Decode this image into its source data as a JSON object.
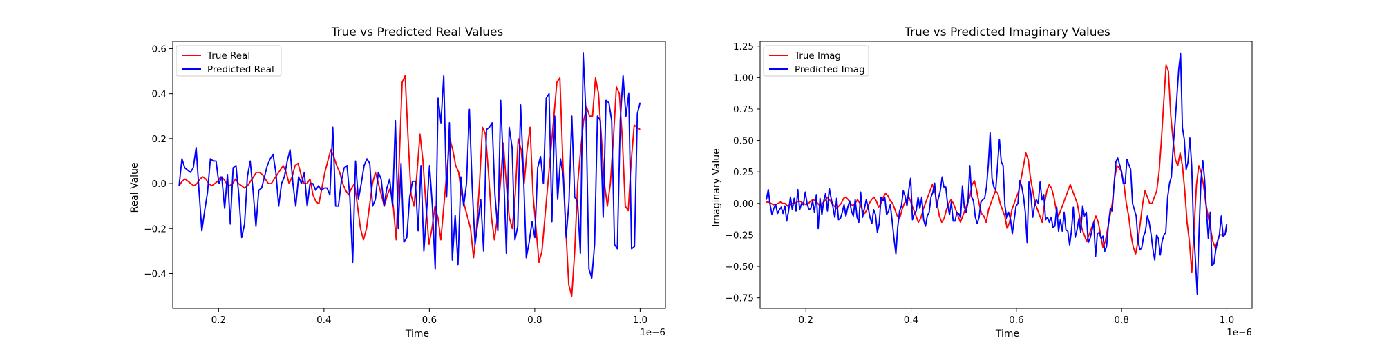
{
  "chart_data": [
    {
      "type": "line",
      "title": "True vs Predicted Real Values",
      "xlabel": "Time",
      "ylabel": "Real Value",
      "x_offset_label": "1e−6",
      "xlim": [
        0.113,
        1.048
      ],
      "ylim": [
        -0.555,
        0.632
      ],
      "xticks": [
        0.2,
        0.4,
        0.6,
        0.8,
        1.0
      ],
      "xtick_labels": [
        "0.2",
        "0.4",
        "0.6",
        "0.8",
        "1.0"
      ],
      "yticks": [
        -0.4,
        -0.2,
        0.0,
        0.2,
        0.4,
        0.6
      ],
      "ytick_labels": [
        "−0.4",
        "−0.2",
        "0.0",
        "0.2",
        "0.4",
        "0.6"
      ],
      "grid": false,
      "legend_position": "upper-left",
      "x_start": 0.125,
      "x_end": 1.0,
      "series": [
        {
          "name": "True Real",
          "color": "#ff0000",
          "values": [
            -0.01,
            0.01,
            0.02,
            0.01,
            0.0,
            -0.01,
            0.0,
            0.02,
            0.03,
            0.02,
            0.0,
            -0.01,
            0.0,
            0.01,
            0.03,
            0.02,
            0.0,
            -0.01,
            0.0,
            0.02,
            0.0,
            -0.01,
            -0.02,
            -0.01,
            0.01,
            0.03,
            0.05,
            0.05,
            0.04,
            0.02,
            0.0,
            0.0,
            0.02,
            0.04,
            0.06,
            0.08,
            0.05,
            0.0,
            0.03,
            0.08,
            0.09,
            0.04,
            0.0,
            0.0,
            0.02,
            -0.05,
            -0.08,
            -0.09,
            -0.02,
            0.05,
            0.1,
            0.15,
            0.12,
            0.08,
            0.05,
            0.0,
            -0.03,
            -0.05,
            -0.02,
            0.0,
            -0.1,
            -0.2,
            -0.25,
            -0.2,
            -0.1,
            0.0,
            0.05,
            0.0,
            -0.05,
            -0.1,
            -0.05,
            -0.02,
            -0.1,
            -0.25,
            0.1,
            0.45,
            0.48,
            0.2,
            -0.05,
            -0.1,
            0.05,
            0.22,
            0.1,
            -0.1,
            -0.27,
            -0.2,
            -0.1,
            -0.15,
            -0.25,
            -0.1,
            0.05,
            0.2,
            0.15,
            0.08,
            0.05,
            -0.05,
            -0.1,
            -0.15,
            -0.2,
            -0.33,
            -0.2,
            0.0,
            0.25,
            0.22,
            0.05,
            -0.15,
            -0.25,
            -0.15,
            0.0,
            0.18,
            0.0,
            -0.15,
            -0.2,
            -0.05,
            0.2,
            0.15,
            0.0,
            0.15,
            0.25,
            -0.05,
            -0.2,
            -0.35,
            -0.3,
            -0.15,
            0.0,
            0.15,
            0.3,
            0.45,
            0.47,
            0.1,
            -0.2,
            -0.45,
            -0.5,
            -0.3,
            0.0,
            0.15,
            0.28,
            0.34,
            0.3,
            0.3,
            0.47,
            0.4,
            0.2,
            0.0,
            -0.1,
            0.0,
            0.2,
            0.43,
            0.4,
            0.2,
            -0.1,
            -0.12,
            0.1,
            0.26,
            0.25,
            0.24
          ]
        },
        {
          "name": "Predicted Real",
          "color": "#0000ff",
          "values": [
            -0.01,
            0.11,
            0.07,
            0.06,
            0.05,
            0.07,
            0.16,
            -0.03,
            -0.21,
            -0.12,
            -0.04,
            0.11,
            0.1,
            0.1,
            0.0,
            0.03,
            -0.11,
            0.04,
            -0.18,
            0.07,
            0.08,
            -0.05,
            -0.24,
            -0.18,
            0.03,
            0.1,
            -0.03,
            -0.19,
            -0.03,
            -0.02,
            0.03,
            0.08,
            0.11,
            0.13,
            0.05,
            -0.1,
            0.0,
            0.03,
            0.1,
            0.15,
            0.0,
            -0.1,
            0.03,
            0.0,
            0.05,
            -0.1,
            0.0,
            0.0,
            -0.03,
            -0.01,
            -0.03,
            -0.02,
            -0.02,
            -0.05,
            0.25,
            -0.1,
            -0.1,
            0.01,
            0.07,
            0.08,
            -0.06,
            -0.35,
            0.1,
            -0.07,
            0.0,
            0.08,
            0.11,
            0.09,
            -0.1,
            -0.07,
            0.05,
            0.02,
            -0.1,
            -0.02,
            0.02,
            -0.1,
            0.28,
            -0.2,
            0.09,
            -0.26,
            -0.24,
            -0.06,
            0.01,
            0.01,
            -0.21,
            0.08,
            -0.3,
            -0.12,
            0.08,
            -0.1,
            -0.38,
            0.38,
            0.27,
            0.48,
            -0.06,
            0.27,
            -0.34,
            -0.14,
            -0.36,
            0.03,
            -0.1,
            0.0,
            0.33,
            -0.02,
            -0.27,
            -0.17,
            -0.07,
            -0.3,
            0.24,
            0.25,
            0.27,
            -0.05,
            -0.21,
            0.37,
            0.06,
            -0.31,
            0.25,
            0.16,
            -0.25,
            -0.19,
            0.35,
            0.05,
            -0.33,
            -0.26,
            -0.17,
            -0.24,
            0.07,
            0.12,
            0.0,
            0.38,
            0.4,
            -0.17,
            0.3,
            -0.07,
            0.11,
            0.03,
            -0.24,
            -0.08,
            0.3,
            -0.06,
            -0.08,
            -0.31,
            0.58,
            0.3,
            -0.38,
            -0.42,
            -0.27,
            0.3,
            0.28,
            -0.15,
            0.37,
            0.36,
            0.28,
            -0.27,
            -0.29,
            0.28,
            0.48,
            0.3,
            0.4,
            -0.29,
            -0.28,
            0.31,
            0.36
          ]
        }
      ]
    },
    {
      "type": "line",
      "title": "True vs Predicted Imaginary Values",
      "xlabel": "Time",
      "ylabel": "Imaginary Value",
      "x_offset_label": "1e−6",
      "xlim": [
        0.113,
        1.048
      ],
      "ylim": [
        -0.834,
        1.287
      ],
      "xticks": [
        0.2,
        0.4,
        0.6,
        0.8,
        1.0
      ],
      "xtick_labels": [
        "0.2",
        "0.4",
        "0.6",
        "0.8",
        "1.0"
      ],
      "yticks": [
        -0.75,
        -0.5,
        -0.25,
        0.0,
        0.25,
        0.5,
        0.75,
        1.0,
        1.25
      ],
      "ytick_labels": [
        "−0.75",
        "−0.50",
        "−0.25",
        "0.00",
        "0.25",
        "0.50",
        "0.75",
        "1.00",
        "1.25"
      ],
      "grid": false,
      "legend_position": "upper-left",
      "x_start": 0.125,
      "x_end": 1.0,
      "series": [
        {
          "name": "True Imag",
          "color": "#ff0000",
          "values": [
            0.01,
            0.01,
            0.0,
            -0.01,
            -0.01,
            0.0,
            0.01,
            0.0,
            0.0,
            -0.02,
            -0.01,
            0.0,
            0.0,
            0.01,
            0.02,
            0.01,
            0.0,
            -0.01,
            0.0,
            0.02,
            0.03,
            0.02,
            0.0,
            -0.02,
            0.0,
            0.02,
            0.05,
            0.03,
            0.0,
            -0.02,
            -0.04,
            -0.02,
            0.0,
            0.04,
            0.05,
            0.03,
            0.0,
            -0.02,
            0.0,
            0.03,
            0.0,
            -0.05,
            -0.08,
            -0.05,
            0.0,
            0.03,
            0.05,
            0.02,
            -0.03,
            0.0,
            0.05,
            0.08,
            0.06,
            0.02,
            0.0,
            -0.05,
            -0.1,
            -0.12,
            -0.05,
            0.0,
            0.03,
            0.05,
            0.0,
            -0.05,
            -0.1,
            -0.15,
            -0.12,
            -0.05,
            0.0,
            0.05,
            0.1,
            0.15,
            0.1,
            0.0,
            -0.1,
            -0.15,
            -0.12,
            -0.05,
            0.0,
            0.03,
            0.0,
            -0.05,
            -0.1,
            -0.15,
            -0.1,
            -0.05,
            0.0,
            0.05,
            0.15,
            0.18,
            0.1,
            0.0,
            -0.08,
            -0.1,
            -0.15,
            -0.05,
            0.0,
            0.05,
            0.1,
            0.08,
            0.0,
            -0.05,
            -0.1,
            -0.2,
            -0.15,
            -0.05,
            0.0,
            0.05,
            0.1,
            0.2,
            0.3,
            0.4,
            0.35,
            0.2,
            0.1,
            0.0,
            -0.05,
            -0.1,
            -0.15,
            0.0,
            0.1,
            0.15,
            0.12,
            0.05,
            -0.05,
            -0.1,
            -0.05,
            0.0,
            0.05,
            0.1,
            0.15,
            0.1,
            0.05,
            0.0,
            -0.1,
            -0.2,
            -0.25,
            -0.3,
            -0.25,
            -0.2,
            -0.15,
            -0.1,
            -0.15,
            -0.25,
            -0.35,
            -0.3,
            -0.2,
            -0.1,
            0.0,
            0.2,
            0.3,
            0.28,
            0.25,
            0.15,
            0.0,
            -0.1,
            -0.25,
            -0.35,
            -0.4,
            -0.3,
            -0.15,
            0.0,
            0.1,
            0.05,
            0.0,
            0.0,
            0.05,
            0.1,
            0.25,
            0.5,
            0.8,
            1.1,
            1.05,
            0.7,
            0.5,
            0.35,
            0.3,
            0.4,
            0.3,
            0.1,
            -0.15,
            -0.3,
            -0.55,
            -0.2,
            0.15,
            0.3,
            0.25,
            0.15,
            0.0,
            -0.1,
            -0.2,
            -0.3,
            -0.35,
            -0.3,
            -0.25,
            -0.25,
            -0.25,
            -0.2
          ]
        },
        {
          "name": "Predicted Imag",
          "color": "#0000ff",
          "values": [
            0.03,
            0.11,
            -0.01,
            -0.09,
            -0.04,
            -0.01,
            -0.08,
            -0.05,
            -0.03,
            -0.08,
            -0.02,
            -0.14,
            -0.06,
            0.05,
            -0.05,
            0.04,
            -0.06,
            0.11,
            -0.05,
            0.0,
            -0.01,
            0.09,
            0.0,
            -0.05,
            -0.04,
            0.02,
            -0.07,
            0.07,
            -0.2,
            0.04,
            -0.09,
            0.02,
            0.08,
            -0.06,
            0.12,
            0.04,
            -0.03,
            -0.11,
            0.04,
            -0.13,
            -0.12,
            -0.07,
            -0.01,
            -0.1,
            -0.03,
            0.02,
            -0.06,
            -0.1,
            0.03,
            -0.11,
            -0.15,
            0.09,
            -0.11,
            -0.04,
            0.03,
            -0.03,
            -0.11,
            -0.16,
            -0.05,
            -0.09,
            -0.23,
            -0.16,
            0.05,
            0.02,
            0.05,
            -0.09,
            -0.06,
            -0.01,
            -0.14,
            -0.28,
            -0.4,
            -0.19,
            -0.06,
            -0.02,
            0.1,
            0.06,
            -0.02,
            0.11,
            0.2,
            -0.13,
            -0.08,
            -0.06,
            0.05,
            -0.04,
            0.05,
            -0.13,
            -0.18,
            -0.1,
            -0.07,
            0.05,
            0.09,
            0.16,
            -0.03,
            0.04,
            0.1,
            0.21,
            0.13,
            0.13,
            -0.01,
            -0.09,
            0.01,
            -0.14,
            -0.14,
            -0.07,
            -0.08,
            -0.11,
            0.14,
            -0.03,
            -0.07,
            0.01,
            0.3,
            0.05,
            0.02,
            -0.11,
            -0.16,
            -0.11,
            0.01,
            0.03,
            0.04,
            0.13,
            0.31,
            0.56,
            0.2,
            0.13,
            0.11,
            0.3,
            0.51,
            0.33,
            0.3,
            -0.02,
            -0.12,
            -0.07,
            -0.13,
            -0.24,
            -0.13,
            -0.02,
            0.0,
            0.18,
            0.14,
            0.06,
            -0.07,
            -0.31,
            0.17,
            0.08,
            -0.11,
            -0.02,
            0.03,
            0.0,
            0.17,
            0.03,
            0.07,
            -0.13,
            -0.11,
            -0.15,
            -0.11,
            -0.19,
            -0.18,
            -0.03,
            -0.22,
            -0.13,
            -0.22,
            -0.07,
            -0.21,
            -0.22,
            -0.33,
            -0.21,
            -0.03,
            -0.27,
            -0.21,
            -0.12,
            -0.23,
            -0.02,
            -0.1,
            -0.07,
            -0.31,
            -0.28,
            -0.22,
            -0.15,
            -0.42,
            -0.24,
            -0.23,
            -0.28,
            -0.26,
            -0.38,
            -0.34,
            -0.16,
            -0.04,
            -0.06,
            0.14,
            0.33,
            0.36,
            0.31,
            0.26,
            0.16,
            0.16,
            0.35,
            0.31,
            0.27,
            0.0,
            -0.05,
            -0.1,
            -0.3,
            -0.37,
            -0.35,
            -0.26,
            -0.22,
            -0.1,
            -0.15,
            -0.24,
            -0.36,
            -0.45,
            -0.25,
            -0.28,
            -0.41,
            -0.3,
            -0.25,
            -0.23,
            0.05,
            0.16,
            0.21,
            0.45,
            0.64,
            0.85,
            1.07,
            1.19,
            0.6,
            0.51,
            0.27,
            0.33,
            0.52,
            0.3,
            -0.2,
            -0.45,
            -0.72,
            -0.21,
            0.18,
            0.34,
            0.19,
            -0.06,
            -0.28,
            -0.07,
            -0.49,
            -0.48,
            -0.37,
            -0.3,
            -0.25,
            -0.1,
            -0.26,
            -0.25,
            -0.16
          ]
        }
      ]
    }
  ]
}
